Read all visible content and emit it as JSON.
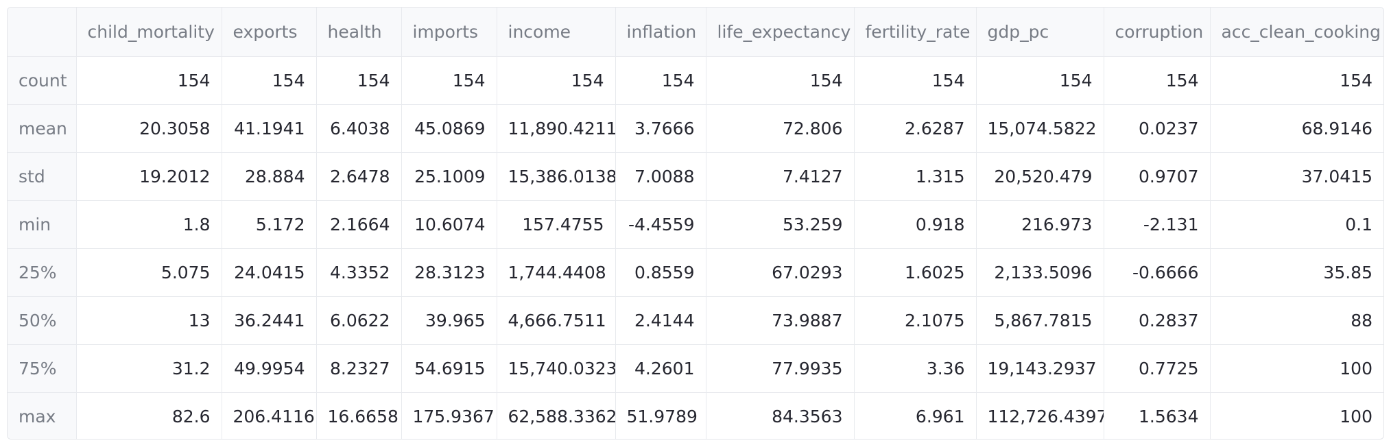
{
  "table": {
    "index_header": "",
    "columns": [
      "child_mortality",
      "exports",
      "health",
      "imports",
      "income",
      "inflation",
      "life_expectancy",
      "fertility_rate",
      "gdp_pc",
      "corruption",
      "acc_clean_cooking"
    ],
    "rows": [
      {
        "label": "count",
        "values": [
          "154",
          "154",
          "154",
          "154",
          "154",
          "154",
          "154",
          "154",
          "154",
          "154",
          "154"
        ]
      },
      {
        "label": "mean",
        "values": [
          "20.3058",
          "41.1941",
          "6.4038",
          "45.0869",
          "11,890.4211",
          "3.7666",
          "72.806",
          "2.6287",
          "15,074.5822",
          "0.0237",
          "68.9146"
        ]
      },
      {
        "label": "std",
        "values": [
          "19.2012",
          "28.884",
          "2.6478",
          "25.1009",
          "15,386.0138",
          "7.0088",
          "7.4127",
          "1.315",
          "20,520.479",
          "0.9707",
          "37.0415"
        ]
      },
      {
        "label": "min",
        "values": [
          "1.8",
          "5.172",
          "2.1664",
          "10.6074",
          "157.4755",
          "-4.4559",
          "53.259",
          "0.918",
          "216.973",
          "-2.131",
          "0.1"
        ]
      },
      {
        "label": "25%",
        "values": [
          "5.075",
          "24.0415",
          "4.3352",
          "28.3123",
          "1,744.4408",
          "0.8559",
          "67.0293",
          "1.6025",
          "2,133.5096",
          "-0.6666",
          "35.85"
        ]
      },
      {
        "label": "50%",
        "values": [
          "13",
          "36.2441",
          "6.0622",
          "39.965",
          "4,666.7511",
          "2.4144",
          "73.9887",
          "2.1075",
          "5,867.7815",
          "0.2837",
          "88"
        ]
      },
      {
        "label": "75%",
        "values": [
          "31.2",
          "49.9954",
          "8.2327",
          "54.6915",
          "15,740.0323",
          "4.2601",
          "77.9935",
          "3.36",
          "19,143.2937",
          "0.7725",
          "100"
        ]
      },
      {
        "label": "max",
        "values": [
          "82.6",
          "206.4116",
          "16.6658",
          "175.9367",
          "62,588.3362",
          "51.9789",
          "84.3563",
          "6.961",
          "112,726.4397",
          "1.5634",
          "100"
        ]
      }
    ]
  }
}
